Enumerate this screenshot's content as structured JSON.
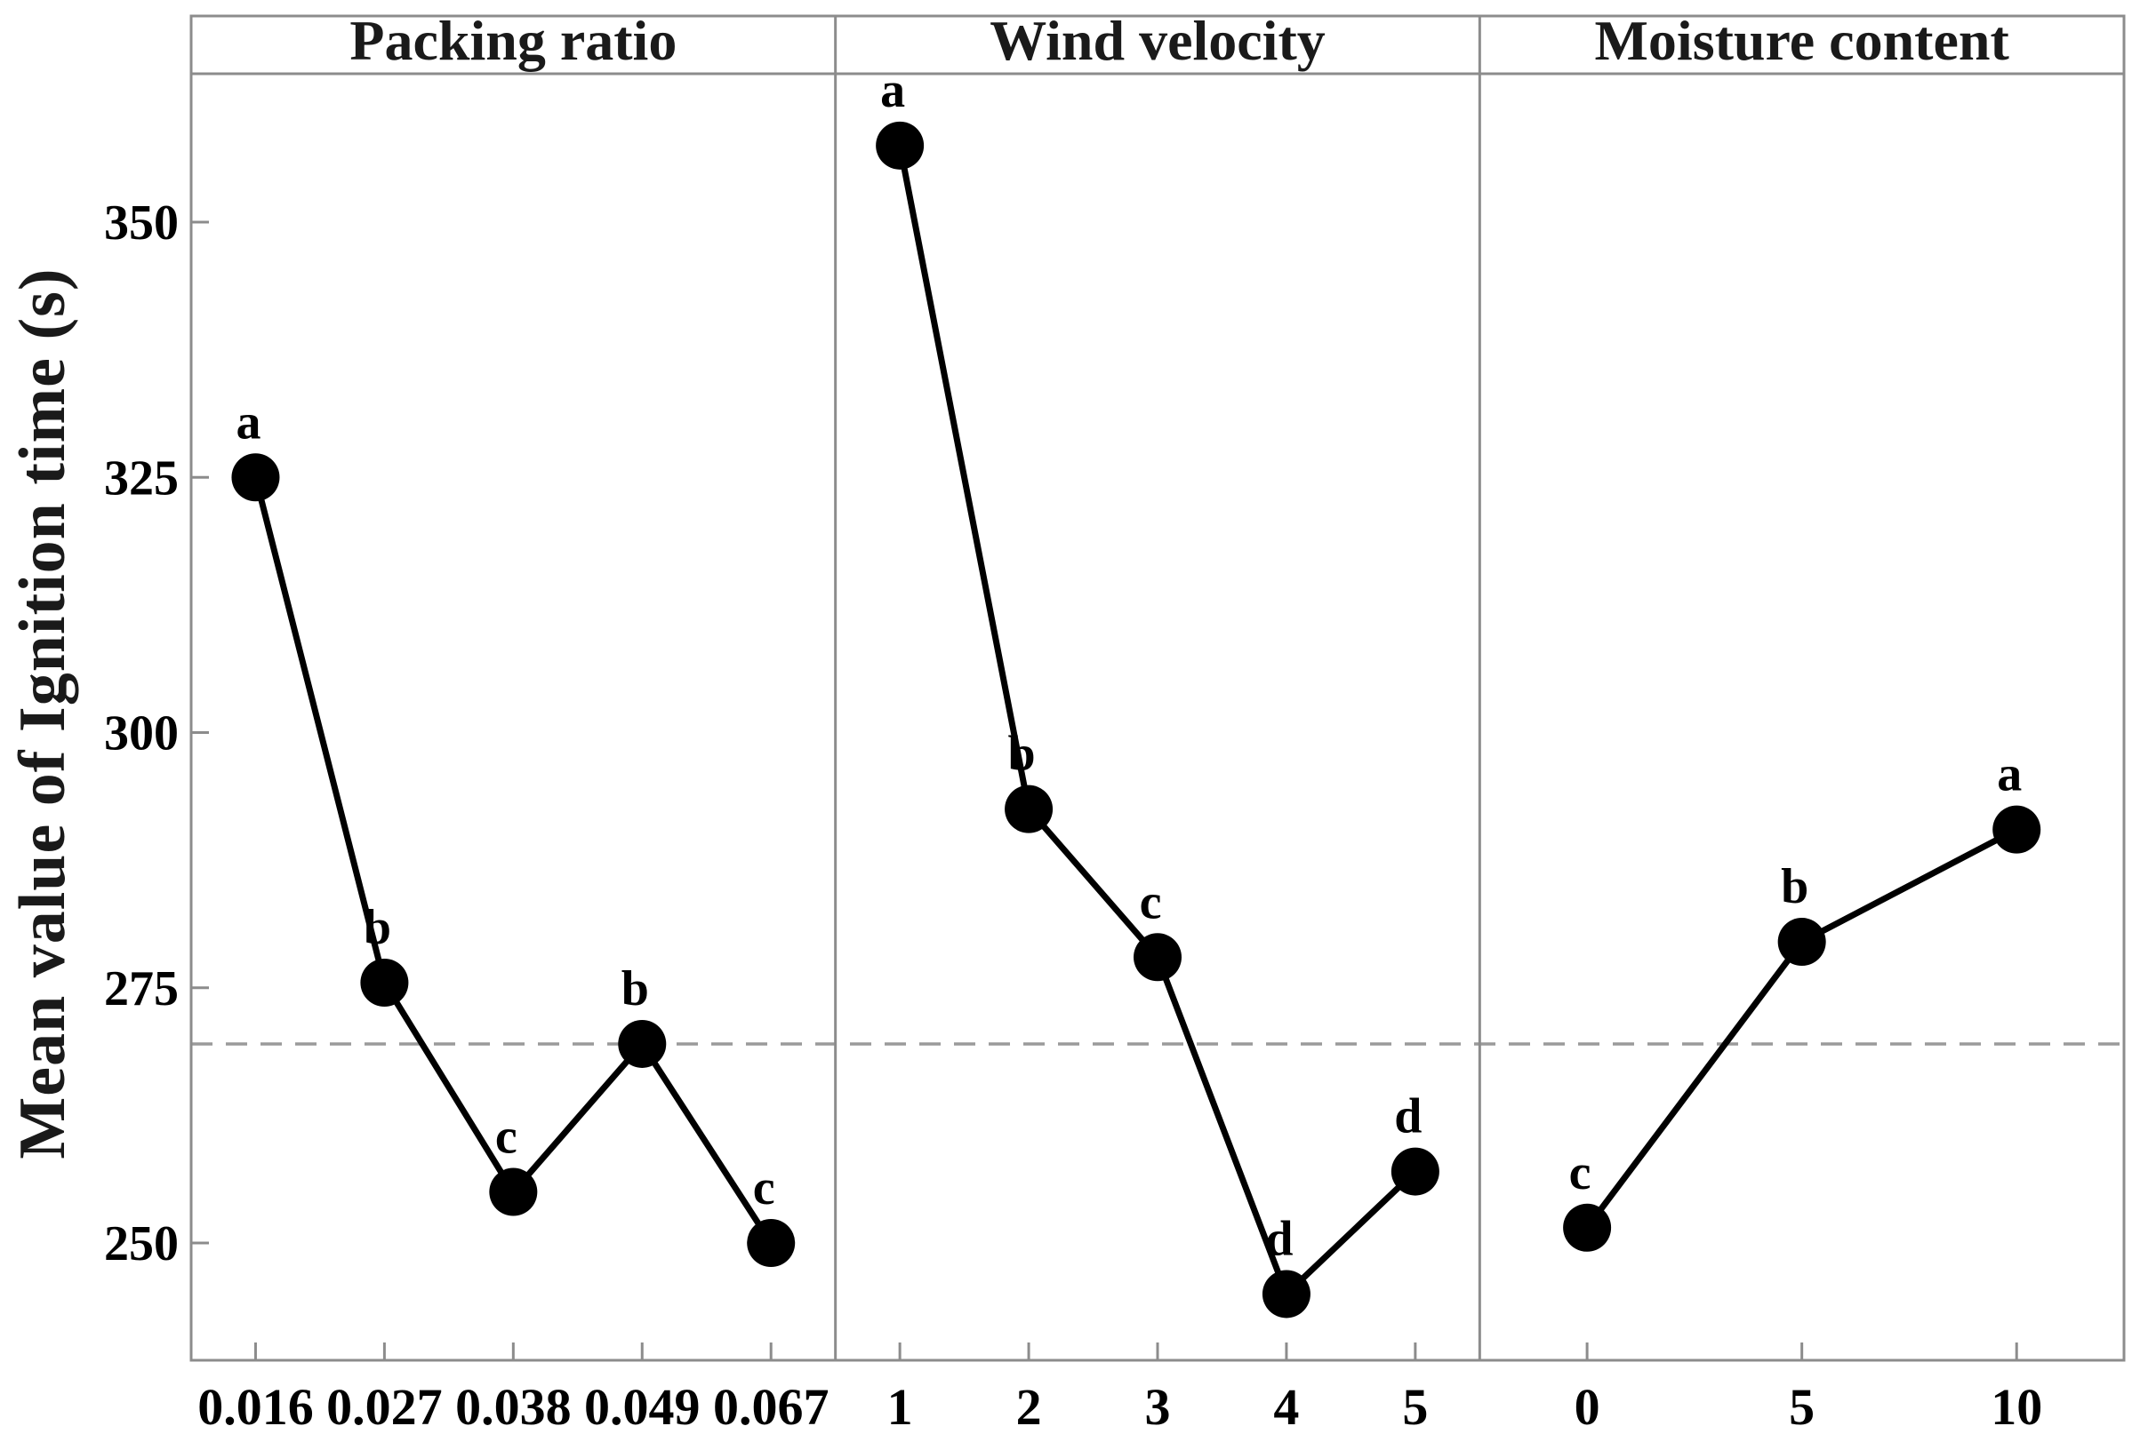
{
  "chart_data": {
    "type": "line",
    "subtype": "main-effects-plot",
    "title": "",
    "ylabel": "Mean value of Ignition time (s)",
    "xlabel": "",
    "yticks": [
      250,
      275,
      300,
      325,
      350
    ],
    "ylim": [
      238.5,
      364.5
    ],
    "grid": false,
    "legend_position": "none",
    "grand_mean_line": 269.5,
    "panels": [
      {
        "title": "Packing ratio",
        "categories": [
          "0.016",
          "0.027",
          "0.038",
          "0.049",
          "0.067"
        ],
        "values": [
          325,
          275.5,
          255,
          269.5,
          250
        ],
        "group_letters": [
          "a",
          "b",
          "c",
          "b",
          "c"
        ]
      },
      {
        "title": "Wind velocity",
        "categories": [
          "1",
          "2",
          "3",
          "4",
          "5"
        ],
        "values": [
          357.5,
          292.5,
          278,
          245,
          257
        ],
        "group_letters": [
          "a",
          "b",
          "c",
          "d",
          "d"
        ]
      },
      {
        "title": "Moisture content",
        "categories": [
          "0",
          "5",
          "10"
        ],
        "values": [
          251.5,
          279.5,
          290.5
        ],
        "group_letters": [
          "c",
          "b",
          "a"
        ]
      }
    ],
    "colors": {
      "data": "#000000",
      "frame": "#8c8c8c",
      "mean_line": "#9a9a9a",
      "text": "#1a1a1a"
    }
  }
}
